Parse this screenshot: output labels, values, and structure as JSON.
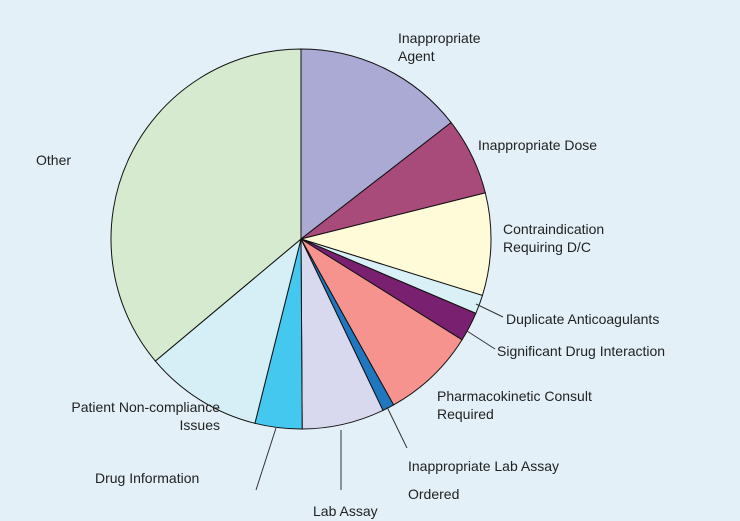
{
  "chart_data": {
    "type": "pie",
    "categories": [
      "Inappropriate Agent",
      "Inappropriate Dose",
      "Contraindication Requiring D/C",
      "Duplicate Anticoagulants",
      "Significant Drug Interaction",
      "Pharmacokinetic Consult Required",
      "Inappropriate Lab Assay Ordered",
      "Lab Assay",
      "Drug Information",
      "Patient Non-compliance Issues",
      "Other"
    ],
    "values": [
      14.5,
      6.6,
      8.7,
      1.6,
      2.5,
      8,
      1,
      7,
      4,
      10,
      36.1
    ],
    "colors": [
      "#aaaad4",
      "#a84a7a",
      "#fffad8",
      "#d9f0f7",
      "#7a2070",
      "#f7938e",
      "#1f78bf",
      "#d8d8ee",
      "#45c8f0",
      "#d6eff6",
      "#d6ead0"
    ]
  }
}
